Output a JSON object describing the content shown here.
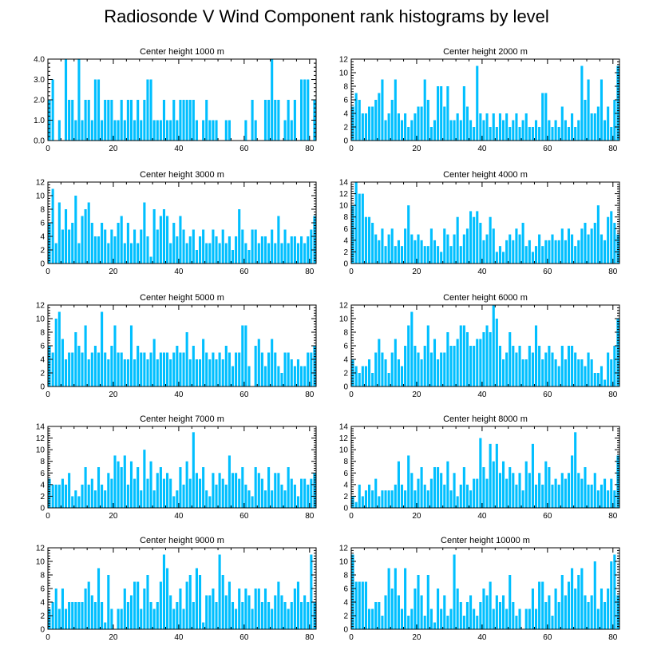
{
  "figure": {
    "title": "Radiosonde V Wind Component rank histograms by level",
    "bar_color": "#00bfff",
    "axis_color": "#000000"
  },
  "chart_data": [
    {
      "type": "bar",
      "title": "Center height 1000 m",
      "xlim": [
        0,
        82
      ],
      "ylim": [
        0,
        4
      ],
      "xticks": [
        0,
        20,
        40,
        60,
        80
      ],
      "xtick_labels": [
        "0",
        "20",
        "40",
        "60",
        "80"
      ],
      "yticks": [
        0,
        1,
        2,
        3,
        4
      ],
      "ytick_labels": [
        "0.0",
        "1.0",
        "2.0",
        "3.0",
        "4.0"
      ],
      "values": [
        2,
        3,
        0,
        1,
        0,
        4,
        2,
        2,
        1,
        4,
        1,
        2,
        2,
        1,
        3,
        3,
        1,
        2,
        2,
        2,
        1,
        1,
        2,
        1,
        2,
        2,
        1,
        2,
        1,
        2,
        3,
        3,
        1,
        1,
        1,
        2,
        1,
        1,
        2,
        1,
        2,
        2,
        2,
        2,
        2,
        1,
        0,
        1,
        2,
        1,
        1,
        1,
        0,
        0,
        1,
        1,
        0,
        0,
        0,
        0,
        1,
        0,
        2,
        1,
        0,
        0,
        2,
        2,
        4,
        2,
        2,
        0,
        1,
        2,
        1,
        2,
        0,
        3,
        3,
        3,
        0,
        2
      ]
    },
    {
      "type": "bar",
      "title": "Center height 2000 m",
      "xlim": [
        0,
        82
      ],
      "ylim": [
        0,
        12
      ],
      "xticks": [
        0,
        20,
        40,
        60,
        80
      ],
      "xtick_labels": [
        "0",
        "20",
        "40",
        "60",
        "80"
      ],
      "yticks": [
        0,
        2,
        4,
        6,
        8,
        10,
        12
      ],
      "ytick_labels": [
        "0",
        "2",
        "4",
        "6",
        "8",
        "10",
        "12"
      ],
      "values": [
        5,
        7,
        6,
        4,
        4,
        5,
        5,
        6,
        7,
        9,
        3,
        4,
        6,
        9,
        4,
        3,
        4,
        2,
        3,
        4,
        5,
        5,
        9,
        6,
        2,
        3,
        8,
        8,
        5,
        8,
        3,
        3,
        4,
        3,
        8,
        5,
        3,
        2,
        11,
        4,
        3,
        4,
        2,
        4,
        2,
        4,
        3,
        4,
        2,
        3,
        4,
        2,
        3,
        4,
        2,
        2,
        3,
        2,
        7,
        7,
        3,
        2,
        3,
        2,
        5,
        3,
        2,
        4,
        2,
        3,
        11,
        6,
        9,
        4,
        4,
        5,
        9,
        3,
        5,
        2,
        6,
        11
      ]
    },
    {
      "type": "bar",
      "title": "Center height 3000 m",
      "xlim": [
        0,
        82
      ],
      "ylim": [
        0,
        12
      ],
      "xticks": [
        0,
        20,
        40,
        60,
        80
      ],
      "xtick_labels": [
        "0",
        "20",
        "40",
        "60",
        "80"
      ],
      "yticks": [
        0,
        2,
        4,
        6,
        8,
        10,
        12
      ],
      "ytick_labels": [
        "0",
        "2",
        "4",
        "6",
        "8",
        "10",
        "12"
      ],
      "values": [
        6,
        11,
        3,
        9,
        5,
        8,
        5,
        6,
        10,
        3,
        7,
        8,
        9,
        6,
        4,
        4,
        6,
        5,
        3,
        5,
        4,
        6,
        7,
        3,
        6,
        3,
        5,
        3,
        5,
        9,
        4,
        1,
        8,
        5,
        7,
        8,
        7,
        3,
        6,
        4,
        7,
        5,
        3,
        4,
        5,
        2,
        4,
        5,
        3,
        3,
        5,
        4,
        3,
        5,
        3,
        4,
        2,
        4,
        8,
        5,
        3,
        2,
        5,
        5,
        3,
        4,
        4,
        3,
        5,
        3,
        7,
        3,
        5,
        3,
        4,
        4,
        3,
        4,
        3,
        4,
        5,
        7
      ]
    },
    {
      "type": "bar",
      "title": "Center height 4000 m",
      "xlim": [
        0,
        82
      ],
      "ylim": [
        0,
        14
      ],
      "xticks": [
        0,
        20,
        40,
        60,
        80
      ],
      "xtick_labels": [
        "0",
        "20",
        "40",
        "60",
        "80"
      ],
      "yticks": [
        0,
        2,
        4,
        6,
        8,
        10,
        12,
        14
      ],
      "ytick_labels": [
        "0",
        "2",
        "4",
        "6",
        "8",
        "10",
        "12",
        "14"
      ],
      "values": [
        10,
        14,
        12,
        12,
        8,
        8,
        7,
        5,
        4,
        6,
        3,
        5,
        6,
        3,
        4,
        3,
        6,
        10,
        5,
        4,
        5,
        4,
        3,
        3,
        6,
        4,
        3,
        2,
        6,
        5,
        3,
        5,
        8,
        3,
        5,
        6,
        9,
        8,
        9,
        7,
        4,
        5,
        8,
        6,
        2,
        3,
        2,
        4,
        5,
        4,
        6,
        5,
        7,
        3,
        4,
        2,
        3,
        5,
        3,
        4,
        4,
        5,
        4,
        4,
        6,
        4,
        6,
        5,
        3,
        4,
        6,
        7,
        5,
        6,
        7,
        10,
        5,
        4,
        8,
        9,
        7,
        5
      ]
    },
    {
      "type": "bar",
      "title": "Center height 5000 m",
      "xlim": [
        0,
        82
      ],
      "ylim": [
        0,
        12
      ],
      "xticks": [
        0,
        20,
        40,
        60,
        80
      ],
      "xtick_labels": [
        "0",
        "20",
        "40",
        "60",
        "80"
      ],
      "yticks": [
        0,
        2,
        4,
        6,
        8,
        10,
        12
      ],
      "ytick_labels": [
        "0",
        "2",
        "4",
        "6",
        "8",
        "10",
        "12"
      ],
      "values": [
        6,
        5,
        10,
        11,
        7,
        4,
        5,
        5,
        8,
        6,
        5,
        9,
        4,
        5,
        6,
        5,
        11,
        5,
        4,
        6,
        9,
        5,
        5,
        4,
        4,
        9,
        4,
        6,
        5,
        5,
        4,
        5,
        7,
        4,
        5,
        5,
        5,
        4,
        5,
        6,
        5,
        5,
        8,
        4,
        6,
        4,
        4,
        7,
        5,
        4,
        5,
        4,
        5,
        4,
        6,
        5,
        3,
        5,
        5,
        9,
        9,
        3,
        0,
        6,
        7,
        5,
        3,
        5,
        7,
        5,
        3,
        2,
        5,
        5,
        4,
        3,
        4,
        3,
        3,
        5,
        5,
        6
      ]
    },
    {
      "type": "bar",
      "title": "Center height 6000 m",
      "xlim": [
        0,
        82
      ],
      "ylim": [
        0,
        12
      ],
      "xticks": [
        0,
        20,
        40,
        60,
        80
      ],
      "xtick_labels": [
        "0",
        "20",
        "40",
        "60",
        "80"
      ],
      "yticks": [
        0,
        2,
        4,
        6,
        8,
        10,
        12
      ],
      "ytick_labels": [
        "0",
        "2",
        "4",
        "6",
        "8",
        "10",
        "12"
      ],
      "values": [
        4,
        3,
        2,
        3,
        3,
        4,
        2,
        5,
        7,
        5,
        4,
        2,
        5,
        7,
        4,
        3,
        6,
        9,
        11,
        6,
        5,
        4,
        6,
        9,
        5,
        7,
        4,
        5,
        5,
        8,
        6,
        6,
        7,
        9,
        9,
        8,
        6,
        6,
        7,
        7,
        8,
        9,
        8,
        12,
        10,
        6,
        4,
        5,
        8,
        6,
        5,
        6,
        4,
        4,
        6,
        5,
        9,
        6,
        4,
        5,
        6,
        5,
        4,
        3,
        6,
        4,
        6,
        6,
        5,
        4,
        4,
        3,
        5,
        4,
        2,
        2,
        3,
        1,
        5,
        4,
        6,
        10
      ]
    },
    {
      "type": "bar",
      "title": "Center height 7000 m",
      "xlim": [
        0,
        82
      ],
      "ylim": [
        0,
        14
      ],
      "xticks": [
        0,
        20,
        40,
        60,
        80
      ],
      "xtick_labels": [
        "0",
        "20",
        "40",
        "60",
        "80"
      ],
      "yticks": [
        0,
        2,
        4,
        6,
        8,
        10,
        12,
        14
      ],
      "ytick_labels": [
        "0",
        "2",
        "4",
        "6",
        "8",
        "10",
        "12",
        "14"
      ],
      "values": [
        5,
        4,
        4,
        4,
        5,
        4,
        6,
        2,
        3,
        2,
        4,
        7,
        4,
        5,
        3,
        7,
        4,
        3,
        6,
        5,
        9,
        8,
        7,
        9,
        4,
        8,
        5,
        7,
        3,
        10,
        5,
        8,
        3,
        6,
        7,
        5,
        6,
        5,
        2,
        3,
        7,
        4,
        8,
        5,
        13,
        6,
        5,
        7,
        3,
        2,
        6,
        4,
        6,
        5,
        4,
        9,
        6,
        6,
        5,
        7,
        4,
        3,
        2,
        7,
        6,
        5,
        3,
        7,
        3,
        6,
        6,
        4,
        3,
        7,
        5,
        4,
        2,
        5,
        5,
        4,
        5,
        6
      ]
    },
    {
      "type": "bar",
      "title": "Center height 8000 m",
      "xlim": [
        0,
        82
      ],
      "ylim": [
        0,
        14
      ],
      "xticks": [
        0,
        20,
        40,
        60,
        80
      ],
      "xtick_labels": [
        "0",
        "20",
        "40",
        "60",
        "80"
      ],
      "yticks": [
        0,
        2,
        4,
        6,
        8,
        10,
        12,
        14
      ],
      "ytick_labels": [
        "0",
        "2",
        "4",
        "6",
        "8",
        "10",
        "12",
        "14"
      ],
      "values": [
        2,
        1,
        4,
        2,
        3,
        4,
        3,
        5,
        2,
        3,
        3,
        3,
        3,
        4,
        8,
        4,
        3,
        9,
        6,
        3,
        5,
        7,
        4,
        3,
        5,
        7,
        7,
        6,
        4,
        8,
        3,
        6,
        2,
        4,
        7,
        4,
        3,
        5,
        5,
        12,
        7,
        5,
        11,
        8,
        11,
        6,
        8,
        5,
        7,
        6,
        4,
        6,
        3,
        8,
        6,
        11,
        4,
        6,
        4,
        8,
        7,
        4,
        5,
        4,
        6,
        5,
        6,
        9,
        13,
        6,
        5,
        7,
        4,
        4,
        6,
        3,
        4,
        5,
        3,
        5,
        3,
        9
      ]
    },
    {
      "type": "bar",
      "title": "Center height 9000 m",
      "xlim": [
        0,
        82
      ],
      "ylim": [
        0,
        12
      ],
      "xticks": [
        0,
        20,
        40,
        60,
        80
      ],
      "xtick_labels": [
        "0",
        "20",
        "40",
        "60",
        "80"
      ],
      "yticks": [
        0,
        2,
        4,
        6,
        8,
        10,
        12
      ],
      "ytick_labels": [
        "0",
        "2",
        "4",
        "6",
        "8",
        "10",
        "12"
      ],
      "values": [
        3,
        4,
        6,
        3,
        6,
        3,
        4,
        4,
        4,
        4,
        4,
        6,
        7,
        5,
        4,
        9,
        4,
        1,
        8,
        3,
        0,
        3,
        3,
        6,
        4,
        5,
        7,
        7,
        3,
        6,
        8,
        4,
        3,
        4,
        7,
        11,
        9,
        5,
        3,
        4,
        6,
        3,
        7,
        8,
        4,
        9,
        8,
        1,
        5,
        5,
        6,
        4,
        11,
        8,
        5,
        7,
        4,
        3,
        6,
        4,
        6,
        5,
        3,
        6,
        6,
        4,
        6,
        4,
        3,
        5,
        7,
        5,
        4,
        3,
        4,
        6,
        7,
        4,
        5,
        4,
        11,
        4
      ]
    },
    {
      "type": "bar",
      "title": "Center height 10000 m",
      "xlim": [
        0,
        82
      ],
      "ylim": [
        0,
        12
      ],
      "xticks": [
        0,
        20,
        40,
        60,
        80
      ],
      "xtick_labels": [
        "0",
        "20",
        "40",
        "60",
        "80"
      ],
      "yticks": [
        0,
        2,
        4,
        6,
        8,
        10,
        12
      ],
      "ytick_labels": [
        "0",
        "2",
        "4",
        "6",
        "8",
        "10",
        "12"
      ],
      "values": [
        11,
        7,
        7,
        7,
        7,
        3,
        3,
        4,
        4,
        2,
        5,
        9,
        6,
        9,
        5,
        3,
        9,
        2,
        3,
        6,
        8,
        5,
        2,
        8,
        3,
        1,
        6,
        3,
        5,
        2,
        3,
        11,
        6,
        4,
        2,
        4,
        5,
        3,
        2,
        4,
        6,
        5,
        7,
        3,
        5,
        4,
        5,
        3,
        8,
        4,
        2,
        3,
        0,
        3,
        3,
        6,
        3,
        7,
        7,
        4,
        5,
        2,
        6,
        4,
        8,
        5,
        7,
        9,
        6,
        8,
        9,
        5,
        4,
        5,
        10,
        3,
        6,
        4,
        6,
        10,
        11,
        5
      ]
    }
  ]
}
